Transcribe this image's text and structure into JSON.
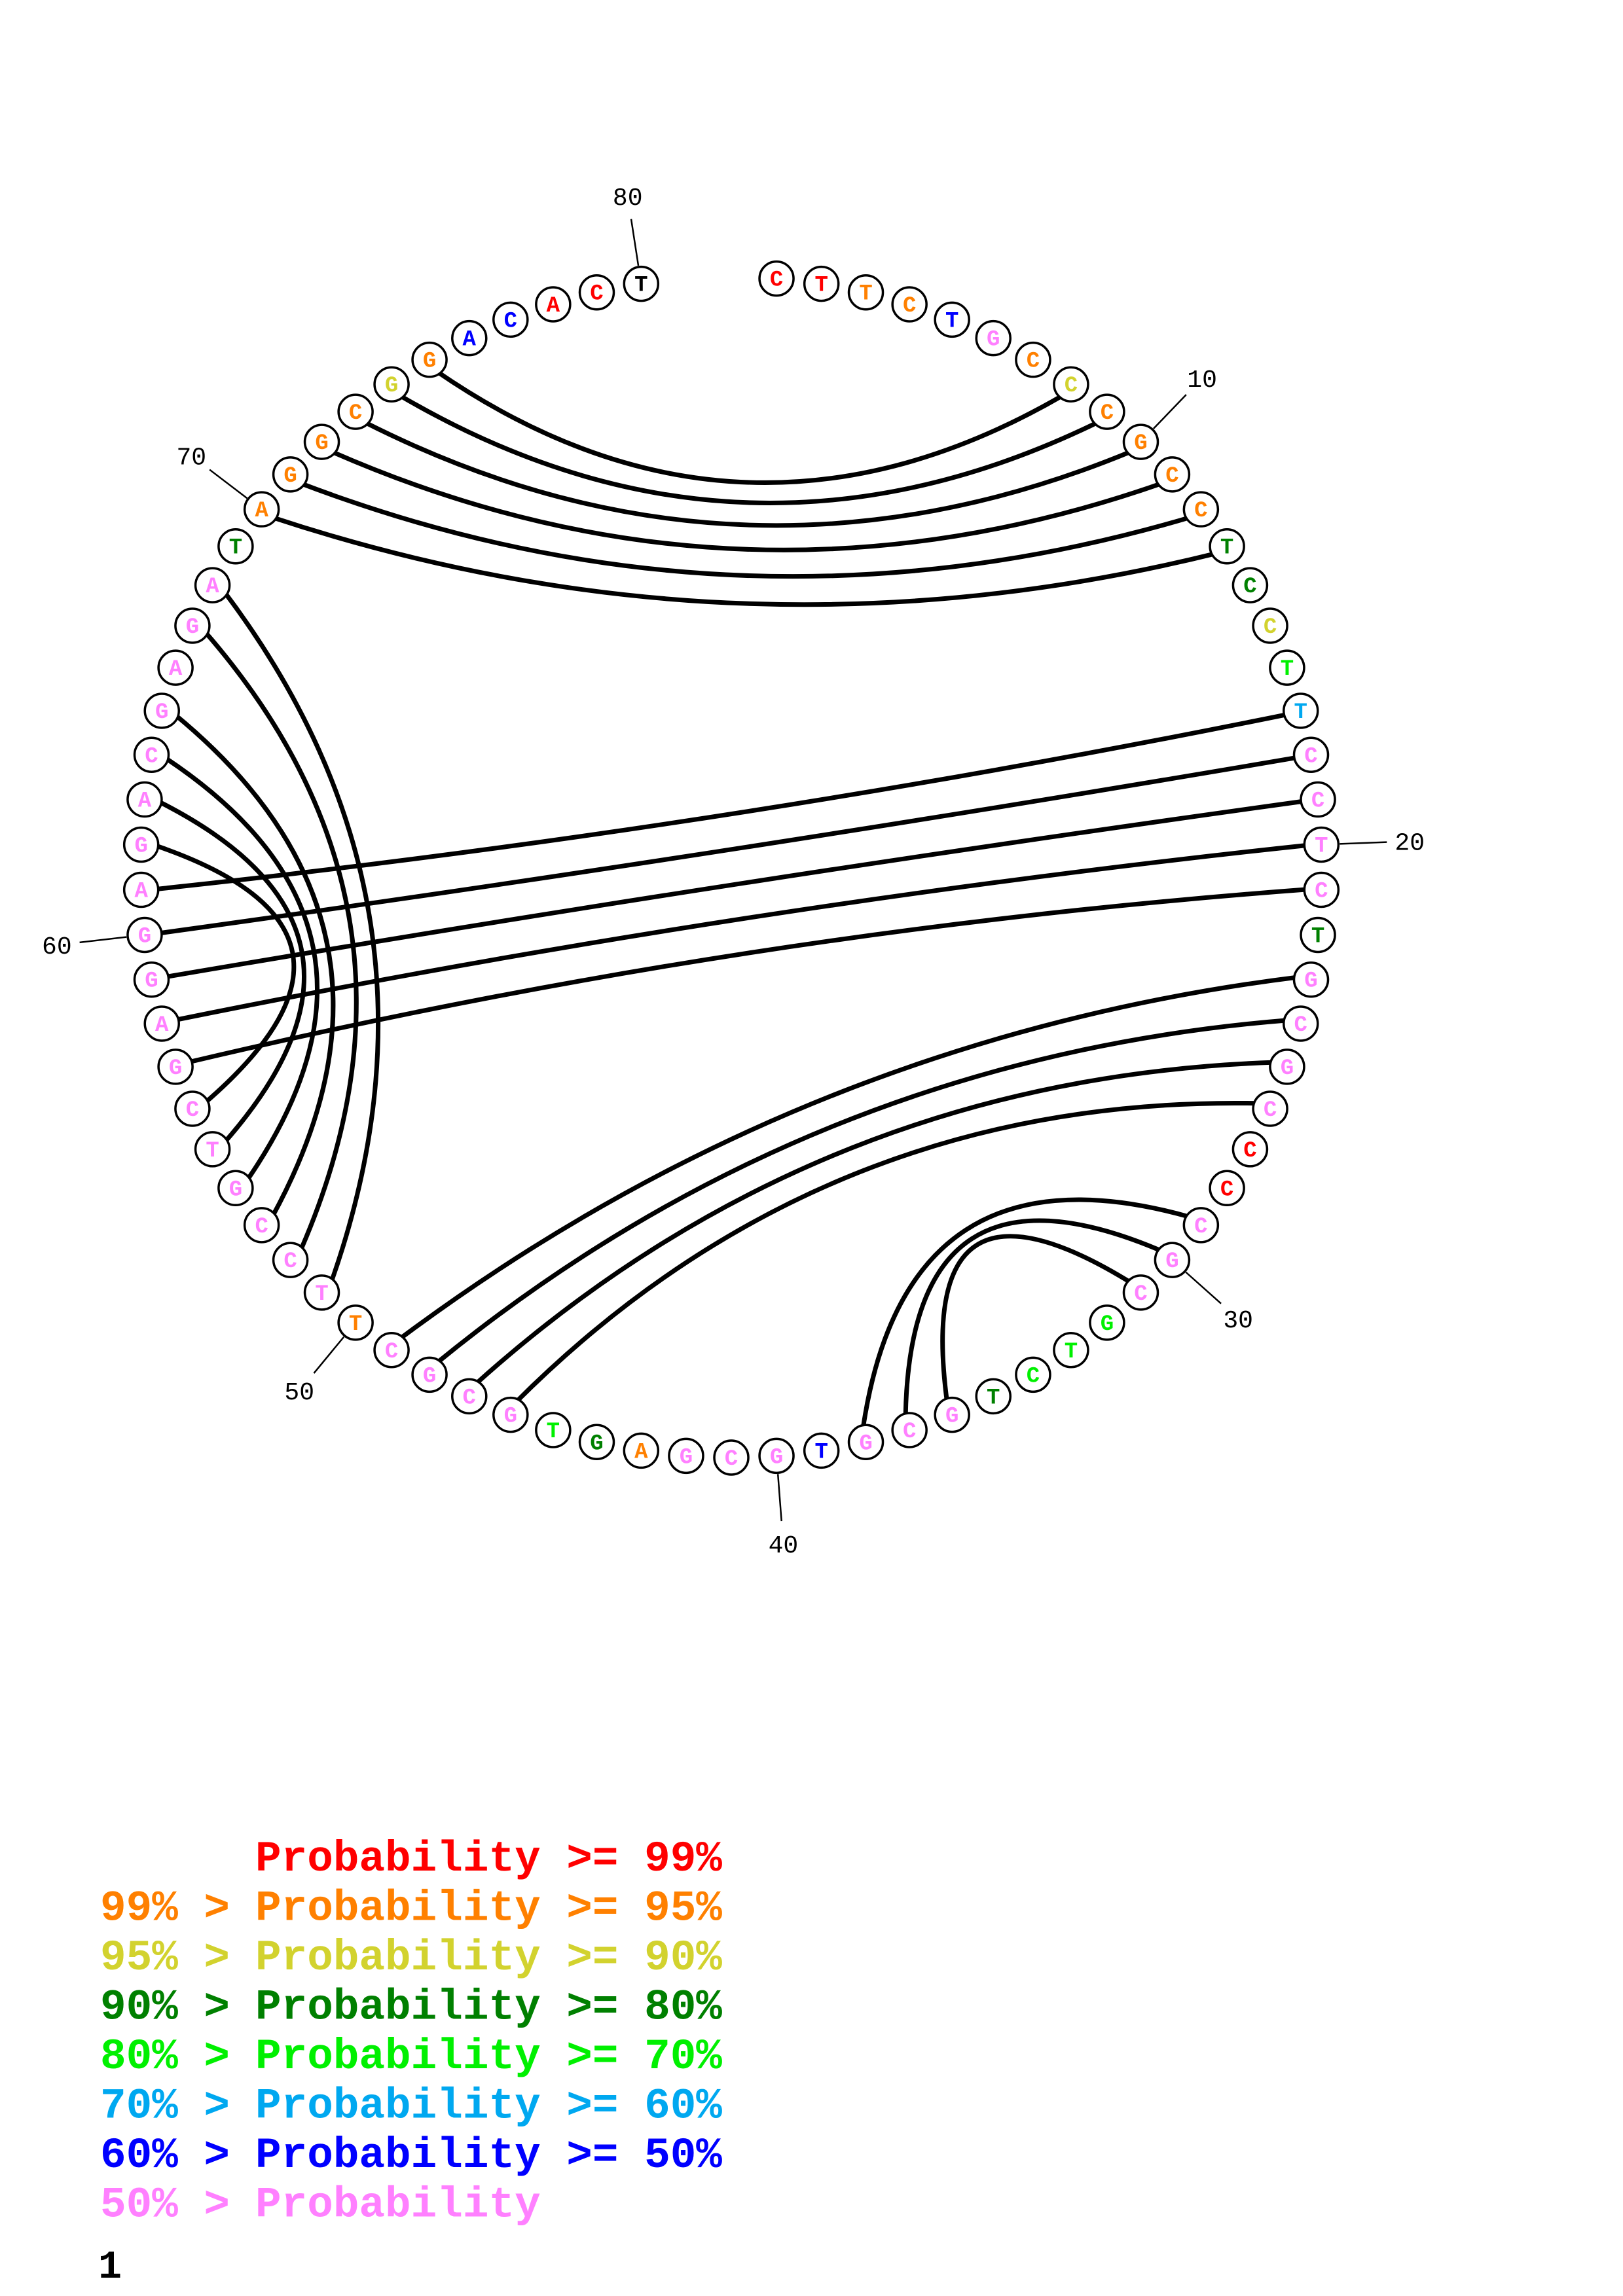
{
  "colors": {
    "r": "#ff0000",
    "o": "#ff8000",
    "y": "#d2d22e",
    "d": "#008000",
    "g": "#00f000",
    "c": "#00a8f0",
    "b": "#0000ff",
    "p": "#ff80ff"
  },
  "sequence": "CTTCTGCCCGCCTCCTTCCTCTGCGCCCCGCGTCTGCGTGCGAGTGCGCTTCCGTCGAGGAGACGAGATAGGCGGACACT",
  "confidence": "rroobpoyooooddygcppppdpppprrpppgggdpppbpppodgppppoppppppppppppppppppdooooyobbrr",
  "pairs": [
    [
      8,
      75
    ],
    [
      9,
      74
    ],
    [
      10,
      73
    ],
    [
      11,
      72
    ],
    [
      12,
      71
    ],
    [
      13,
      70
    ],
    [
      17,
      61
    ],
    [
      18,
      60
    ],
    [
      19,
      59
    ],
    [
      20,
      58
    ],
    [
      21,
      57
    ],
    [
      23,
      49
    ],
    [
      24,
      48
    ],
    [
      25,
      47
    ],
    [
      26,
      46
    ],
    [
      29,
      38
    ],
    [
      30,
      37
    ],
    [
      31,
      36
    ],
    [
      51,
      68
    ],
    [
      52,
      67
    ],
    [
      53,
      65
    ],
    [
      54,
      64
    ],
    [
      55,
      63
    ],
    [
      56,
      62
    ]
  ],
  "tick_labels": [
    "10",
    "20",
    "30",
    "40",
    "50",
    "60",
    "70",
    "80"
  ],
  "legend": [
    {
      "prefix": "",
      "text": "Probability >= 99%",
      "color": "r"
    },
    {
      "prefix": "99% >",
      "text": "Probability >= 95%",
      "color": "o"
    },
    {
      "prefix": "95% >",
      "text": "Probability >= 90%",
      "color": "y"
    },
    {
      "prefix": "90% >",
      "text": "Probability >= 80%",
      "color": "d"
    },
    {
      "prefix": "80% >",
      "text": "Probability >= 70%",
      "color": "g"
    },
    {
      "prefix": "70% >",
      "text": "Probability >= 60%",
      "color": "c"
    },
    {
      "prefix": "60% >",
      "text": "Probability >= 50%",
      "color": "b"
    },
    {
      "prefix": "50% >",
      "text": "Probability",
      "color": "p"
    }
  ],
  "page_number": "1"
}
